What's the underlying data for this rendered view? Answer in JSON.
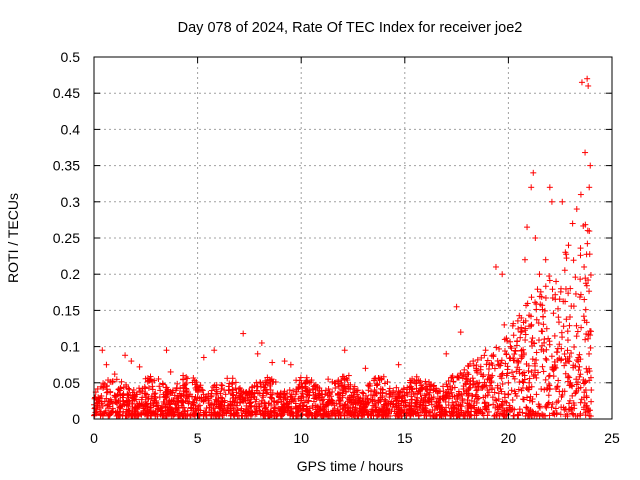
{
  "chart_data": {
    "type": "scatter",
    "title": "Day 078 of 2024, Rate Of TEC Index for receiver joe2",
    "xlabel": "GPS time / hours",
    "ylabel": "ROTI / TECUs",
    "xlim": [
      0,
      25
    ],
    "ylim": [
      0,
      0.5
    ],
    "xticks": [
      0,
      5,
      10,
      15,
      20,
      25
    ],
    "yticks": [
      0,
      0.05,
      0.1,
      0.15,
      0.2,
      0.25,
      0.3,
      0.35,
      0.4,
      0.45,
      0.5
    ],
    "x_tick_labels": [
      "0",
      "5",
      "10",
      "15",
      "20",
      "25"
    ],
    "y_tick_labels": [
      "0",
      "0.05",
      "0.1",
      "0.15",
      "0.2",
      "0.25",
      "0.3",
      "0.35",
      "0.4",
      "0.45",
      "0.5"
    ],
    "grid": true,
    "marker": "+",
    "series": [
      {
        "name": "ROTI",
        "color": "#ff0000",
        "points": [
          [
            0.4,
            0.095
          ],
          [
            0.6,
            0.075
          ],
          [
            1.0,
            0.062
          ],
          [
            1.5,
            0.088
          ],
          [
            1.8,
            0.08
          ],
          [
            2.2,
            0.072
          ],
          [
            2.7,
            0.055
          ],
          [
            3.5,
            0.095
          ],
          [
            3.7,
            0.065
          ],
          [
            4.3,
            0.06
          ],
          [
            5.3,
            0.085
          ],
          [
            5.8,
            0.095
          ],
          [
            6.5,
            0.045
          ],
          [
            7.2,
            0.118
          ],
          [
            7.9,
            0.09
          ],
          [
            8.1,
            0.105
          ],
          [
            8.6,
            0.078
          ],
          [
            9.2,
            0.08
          ],
          [
            9.5,
            0.075
          ],
          [
            10.6,
            0.045
          ],
          [
            11.3,
            0.055
          ],
          [
            12.1,
            0.095
          ],
          [
            12.3,
            0.06
          ],
          [
            13.1,
            0.07
          ],
          [
            14.1,
            0.035
          ],
          [
            14.7,
            0.075
          ],
          [
            15.3,
            0.05
          ],
          [
            15.6,
            0.035
          ],
          [
            16.2,
            0.045
          ],
          [
            17.0,
            0.09
          ],
          [
            17.5,
            0.155
          ],
          [
            17.7,
            0.12
          ],
          [
            18.3,
            0.08
          ],
          [
            18.9,
            0.095
          ],
          [
            19.4,
            0.21
          ],
          [
            19.7,
            0.2
          ],
          [
            19.8,
            0.13
          ],
          [
            20.1,
            0.1
          ],
          [
            20.6,
            0.12
          ],
          [
            20.8,
            0.22
          ],
          [
            20.9,
            0.265
          ],
          [
            21.1,
            0.32
          ],
          [
            21.2,
            0.34
          ],
          [
            21.3,
            0.25
          ],
          [
            21.5,
            0.2
          ],
          [
            21.8,
            0.22
          ],
          [
            22.0,
            0.32
          ],
          [
            22.1,
            0.3
          ],
          [
            22.3,
            0.19
          ],
          [
            22.6,
            0.3
          ],
          [
            22.9,
            0.24
          ],
          [
            23.1,
            0.27
          ],
          [
            23.3,
            0.29
          ],
          [
            23.5,
            0.31
          ],
          [
            23.55,
            0.465
          ],
          [
            23.7,
            0.368
          ],
          [
            23.8,
            0.47
          ],
          [
            23.85,
            0.46
          ],
          [
            23.9,
            0.32
          ],
          [
            23.95,
            0.35
          ],
          [
            0.2,
            0.03
          ],
          [
            1.2,
            0.025
          ],
          [
            2.5,
            0.03
          ],
          [
            3.0,
            0.025
          ],
          [
            4.0,
            0.028
          ],
          [
            5.0,
            0.03
          ],
          [
            6.0,
            0.025
          ],
          [
            7.0,
            0.03
          ],
          [
            8.0,
            0.035
          ],
          [
            9.0,
            0.03
          ],
          [
            10.0,
            0.025
          ],
          [
            11.0,
            0.03
          ],
          [
            12.0,
            0.03
          ],
          [
            13.0,
            0.025
          ],
          [
            14.0,
            0.02
          ],
          [
            15.0,
            0.025
          ],
          [
            16.0,
            0.03
          ],
          [
            17.0,
            0.03
          ],
          [
            18.0,
            0.035
          ],
          [
            19.0,
            0.04
          ],
          [
            20.0,
            0.05
          ],
          [
            21.0,
            0.05
          ],
          [
            22.0,
            0.06
          ],
          [
            23.0,
            0.05
          ],
          [
            24.0,
            0.04
          ]
        ]
      }
    ]
  }
}
